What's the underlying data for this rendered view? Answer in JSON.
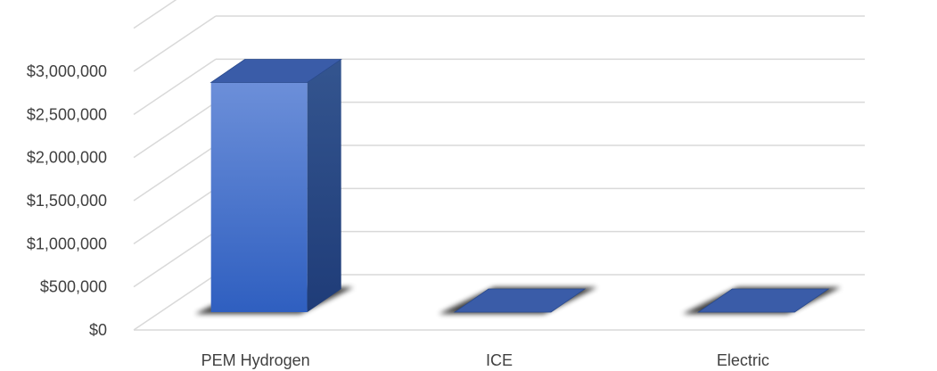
{
  "chart_data": {
    "type": "bar",
    "style": "3d-column",
    "title": "",
    "xlabel": "",
    "ylabel": "",
    "categories": [
      "PEM Hydrogen",
      "ICE",
      "Electric"
    ],
    "series": [
      {
        "values": [
          2850000,
          0,
          0
        ]
      }
    ],
    "ylim": [
      0,
      3000000
    ],
    "yticks": [
      0,
      500000,
      1000000,
      1500000,
      2000000,
      2500000,
      3000000
    ],
    "ytick_labels": [
      "$0",
      "$500,000",
      "$1,000,000",
      "$1,500,000",
      "$2,000,000",
      "$2,500,000",
      "$3,000,000"
    ],
    "grid": true,
    "legend": "none",
    "colors": {
      "bar_front_top": "#6c8fd9",
      "bar_front_bottom": "#2f5fc0",
      "bar_side": "#2a4a8c",
      "bar_top": "#3a5ca8",
      "grid": "#d9d9d9",
      "text": "#404040"
    }
  }
}
